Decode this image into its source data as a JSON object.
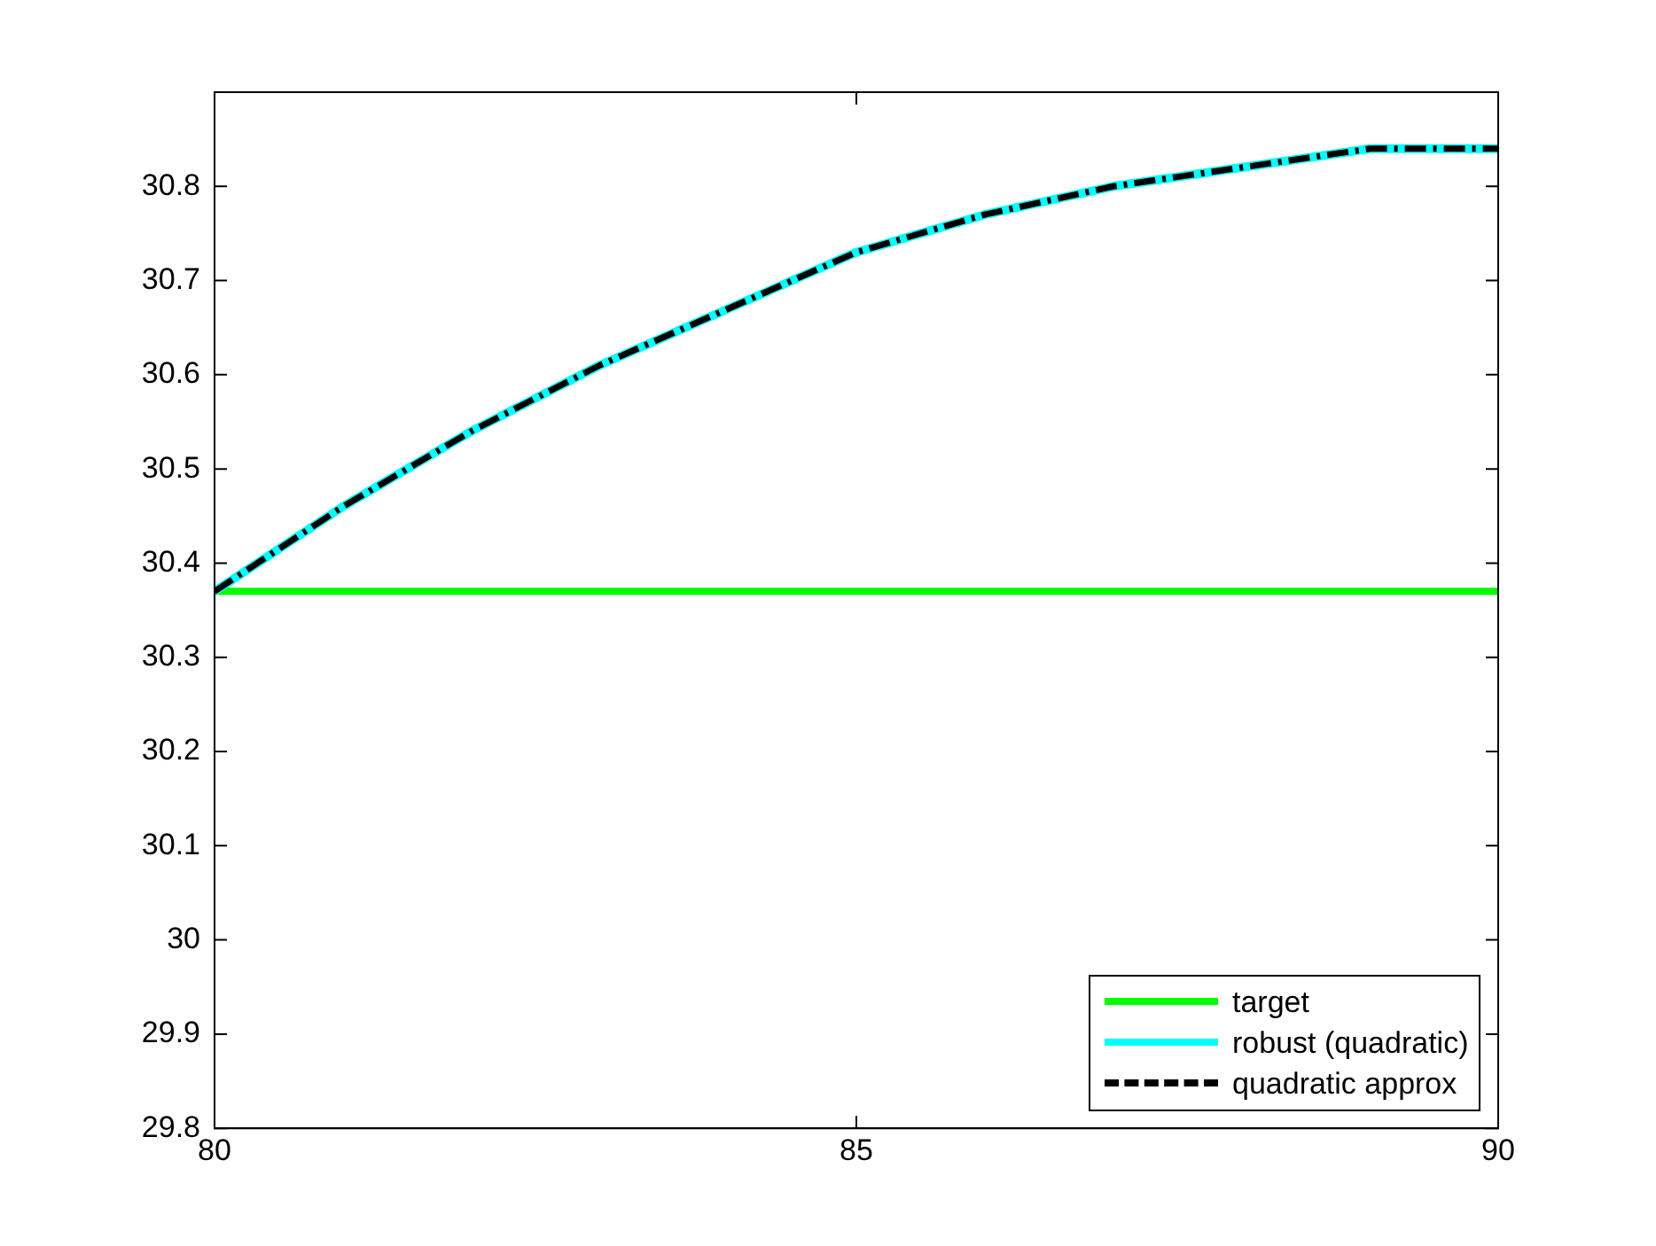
{
  "chart_data": {
    "type": "line",
    "series": [
      {
        "name": "target",
        "color": "#00ff00",
        "x": [
          80,
          90
        ],
        "values": [
          30.37,
          30.37
        ],
        "line_style": "solid"
      },
      {
        "name": "robust (quadratic)",
        "color": "#00ffff",
        "x": [
          80,
          81,
          82,
          83,
          84,
          85,
          86,
          87,
          88,
          89,
          90
        ],
        "values": [
          30.37,
          30.46,
          30.54,
          30.61,
          30.67,
          30.73,
          30.77,
          30.8,
          30.82,
          30.84,
          30.84
        ],
        "line_style": "solid"
      },
      {
        "name": "quadratic approx",
        "color": "#000000",
        "x": [
          80,
          81,
          82,
          83,
          84,
          85,
          86,
          87,
          88,
          89,
          90
        ],
        "values": [
          30.37,
          30.46,
          30.54,
          30.61,
          30.67,
          30.73,
          30.77,
          30.8,
          30.82,
          30.84,
          30.84
        ],
        "line_style": "dashed"
      }
    ],
    "xlim": [
      80,
      90
    ],
    "xticks": [
      80,
      85,
      90
    ],
    "ylim": [
      29.8,
      30.9
    ],
    "yticks": [
      29.8,
      29.9,
      30,
      30.1,
      30.2,
      30.3,
      30.4,
      30.5,
      30.6,
      30.7,
      30.8
    ],
    "grid": false,
    "legend": "bottom right",
    "marker": "none"
  }
}
